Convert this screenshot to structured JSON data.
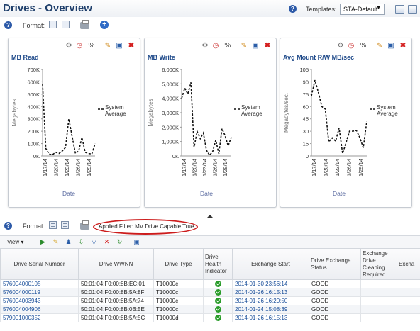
{
  "header": {
    "title": "Drives - Overview",
    "templates_label": "Templates:",
    "template_value": "STA-Default"
  },
  "toolbar": {
    "format_label": "Format:"
  },
  "charts": [
    {
      "title": "MB Read",
      "ylabel": "Megabytes",
      "xlabel": "Date",
      "yticks": [
        "700K",
        "600K",
        "500K",
        "400K",
        "300K",
        "200K",
        "100K",
        "0K"
      ],
      "xticks": [
        "1/17/14",
        "1/20/14",
        "1/23/14",
        "1/26/14",
        "1/29/14"
      ],
      "legend": [
        "System",
        "Average"
      ]
    },
    {
      "title": "MB Write",
      "ylabel": "Megabytes",
      "xlabel": "Date",
      "yticks": [
        "6,000K",
        "5,000K",
        "4,000K",
        "3,000K",
        "2,000K",
        "1,000K",
        "0K"
      ],
      "xticks": [
        "1/17/14",
        "1/20/14",
        "1/23/14",
        "1/26/14",
        "1/29/14"
      ],
      "legend": [
        "System",
        "Average"
      ]
    },
    {
      "title": "Avg Mount R/W MB/sec",
      "ylabel": "Megabytes/sec.",
      "xlabel": "Date",
      "yticks": [
        "105",
        "90",
        "75",
        "60",
        "45",
        "30",
        "15",
        "0"
      ],
      "xticks": [
        "1/17/14",
        "1/20/14",
        "1/23/14",
        "1/26/14",
        "1/29/14"
      ],
      "legend": [
        "System",
        "Average"
      ]
    }
  ],
  "chart_data": [
    {
      "type": "line",
      "title": "MB Read",
      "xlabel": "Date",
      "ylabel": "Megabytes",
      "ylim": [
        0,
        700000
      ],
      "series": [
        {
          "name": "System Average",
          "values": [
            580000,
            60000,
            15000,
            10000,
            30000,
            20000,
            40000,
            70000,
            300000,
            160000,
            20000,
            40000,
            150000,
            30000,
            20000,
            15000,
            100000
          ]
        }
      ]
    },
    {
      "type": "line",
      "title": "MB Write",
      "xlabel": "Date",
      "ylabel": "Megabytes",
      "ylim": [
        0,
        6000000
      ],
      "series": [
        {
          "name": "System Average",
          "values": [
            4000000,
            4700000,
            4300000,
            5100000,
            600000,
            1700000,
            1200000,
            1600000,
            400000,
            50000,
            300000,
            1100000,
            150000,
            1900000,
            1400000,
            700000,
            1300000
          ]
        }
      ]
    },
    {
      "type": "line",
      "title": "Avg Mount R/W MB/sec",
      "xlabel": "Date",
      "ylabel": "Megabytes/sec.",
      "ylim": [
        0,
        105
      ],
      "series": [
        {
          "name": "System Average",
          "values": [
            73,
            92,
            77,
            60,
            57,
            17,
            22,
            18,
            34,
            3,
            16,
            30,
            30,
            31,
            22,
            10,
            42
          ]
        }
      ]
    }
  ],
  "filter": {
    "text": "Applied Filter: MV Drive Capable True"
  },
  "table_toolbar": {
    "view_label": "View"
  },
  "table": {
    "columns": [
      "Drive Serial Number",
      "Drive WWNN",
      "Drive Type",
      "Drive Health Indicator",
      "Exchange Start",
      "Drive Exchange Status",
      "Exchange Drive Cleaning Required",
      "Excha"
    ],
    "rows": [
      [
        "576004000105",
        "50:01:04:F0:00:8B:EC:01",
        "T10000c",
        "ok",
        "2014-01-30 23:56:14",
        "GOOD"
      ],
      [
        "576004000119",
        "50:01:04:F0:00:8B:5A:8F",
        "T10000c",
        "ok",
        "2014-01-26 16:15:13",
        "GOOD"
      ],
      [
        "576004003943",
        "50:01:04:F0:00:8B:5A:74",
        "T10000c",
        "ok",
        "2014-01-26 16:20:50",
        "GOOD"
      ],
      [
        "576004004906",
        "50:01:04:F0:00:8B:0B:5E",
        "T10000c",
        "ok",
        "2014-01-24 15:08:39",
        "GOOD"
      ],
      [
        "579001000352",
        "50:01:04:F0:00:8B:5A:5C",
        "T10000d",
        "ok",
        "2014-01-26 16:15:13",
        "GOOD"
      ]
    ]
  },
  "colors": {
    "accent": "#1f3f6b",
    "link": "#1a4f9a",
    "filter_highlight": "#cc1c1c",
    "status_ok": "#2a9c2a"
  }
}
